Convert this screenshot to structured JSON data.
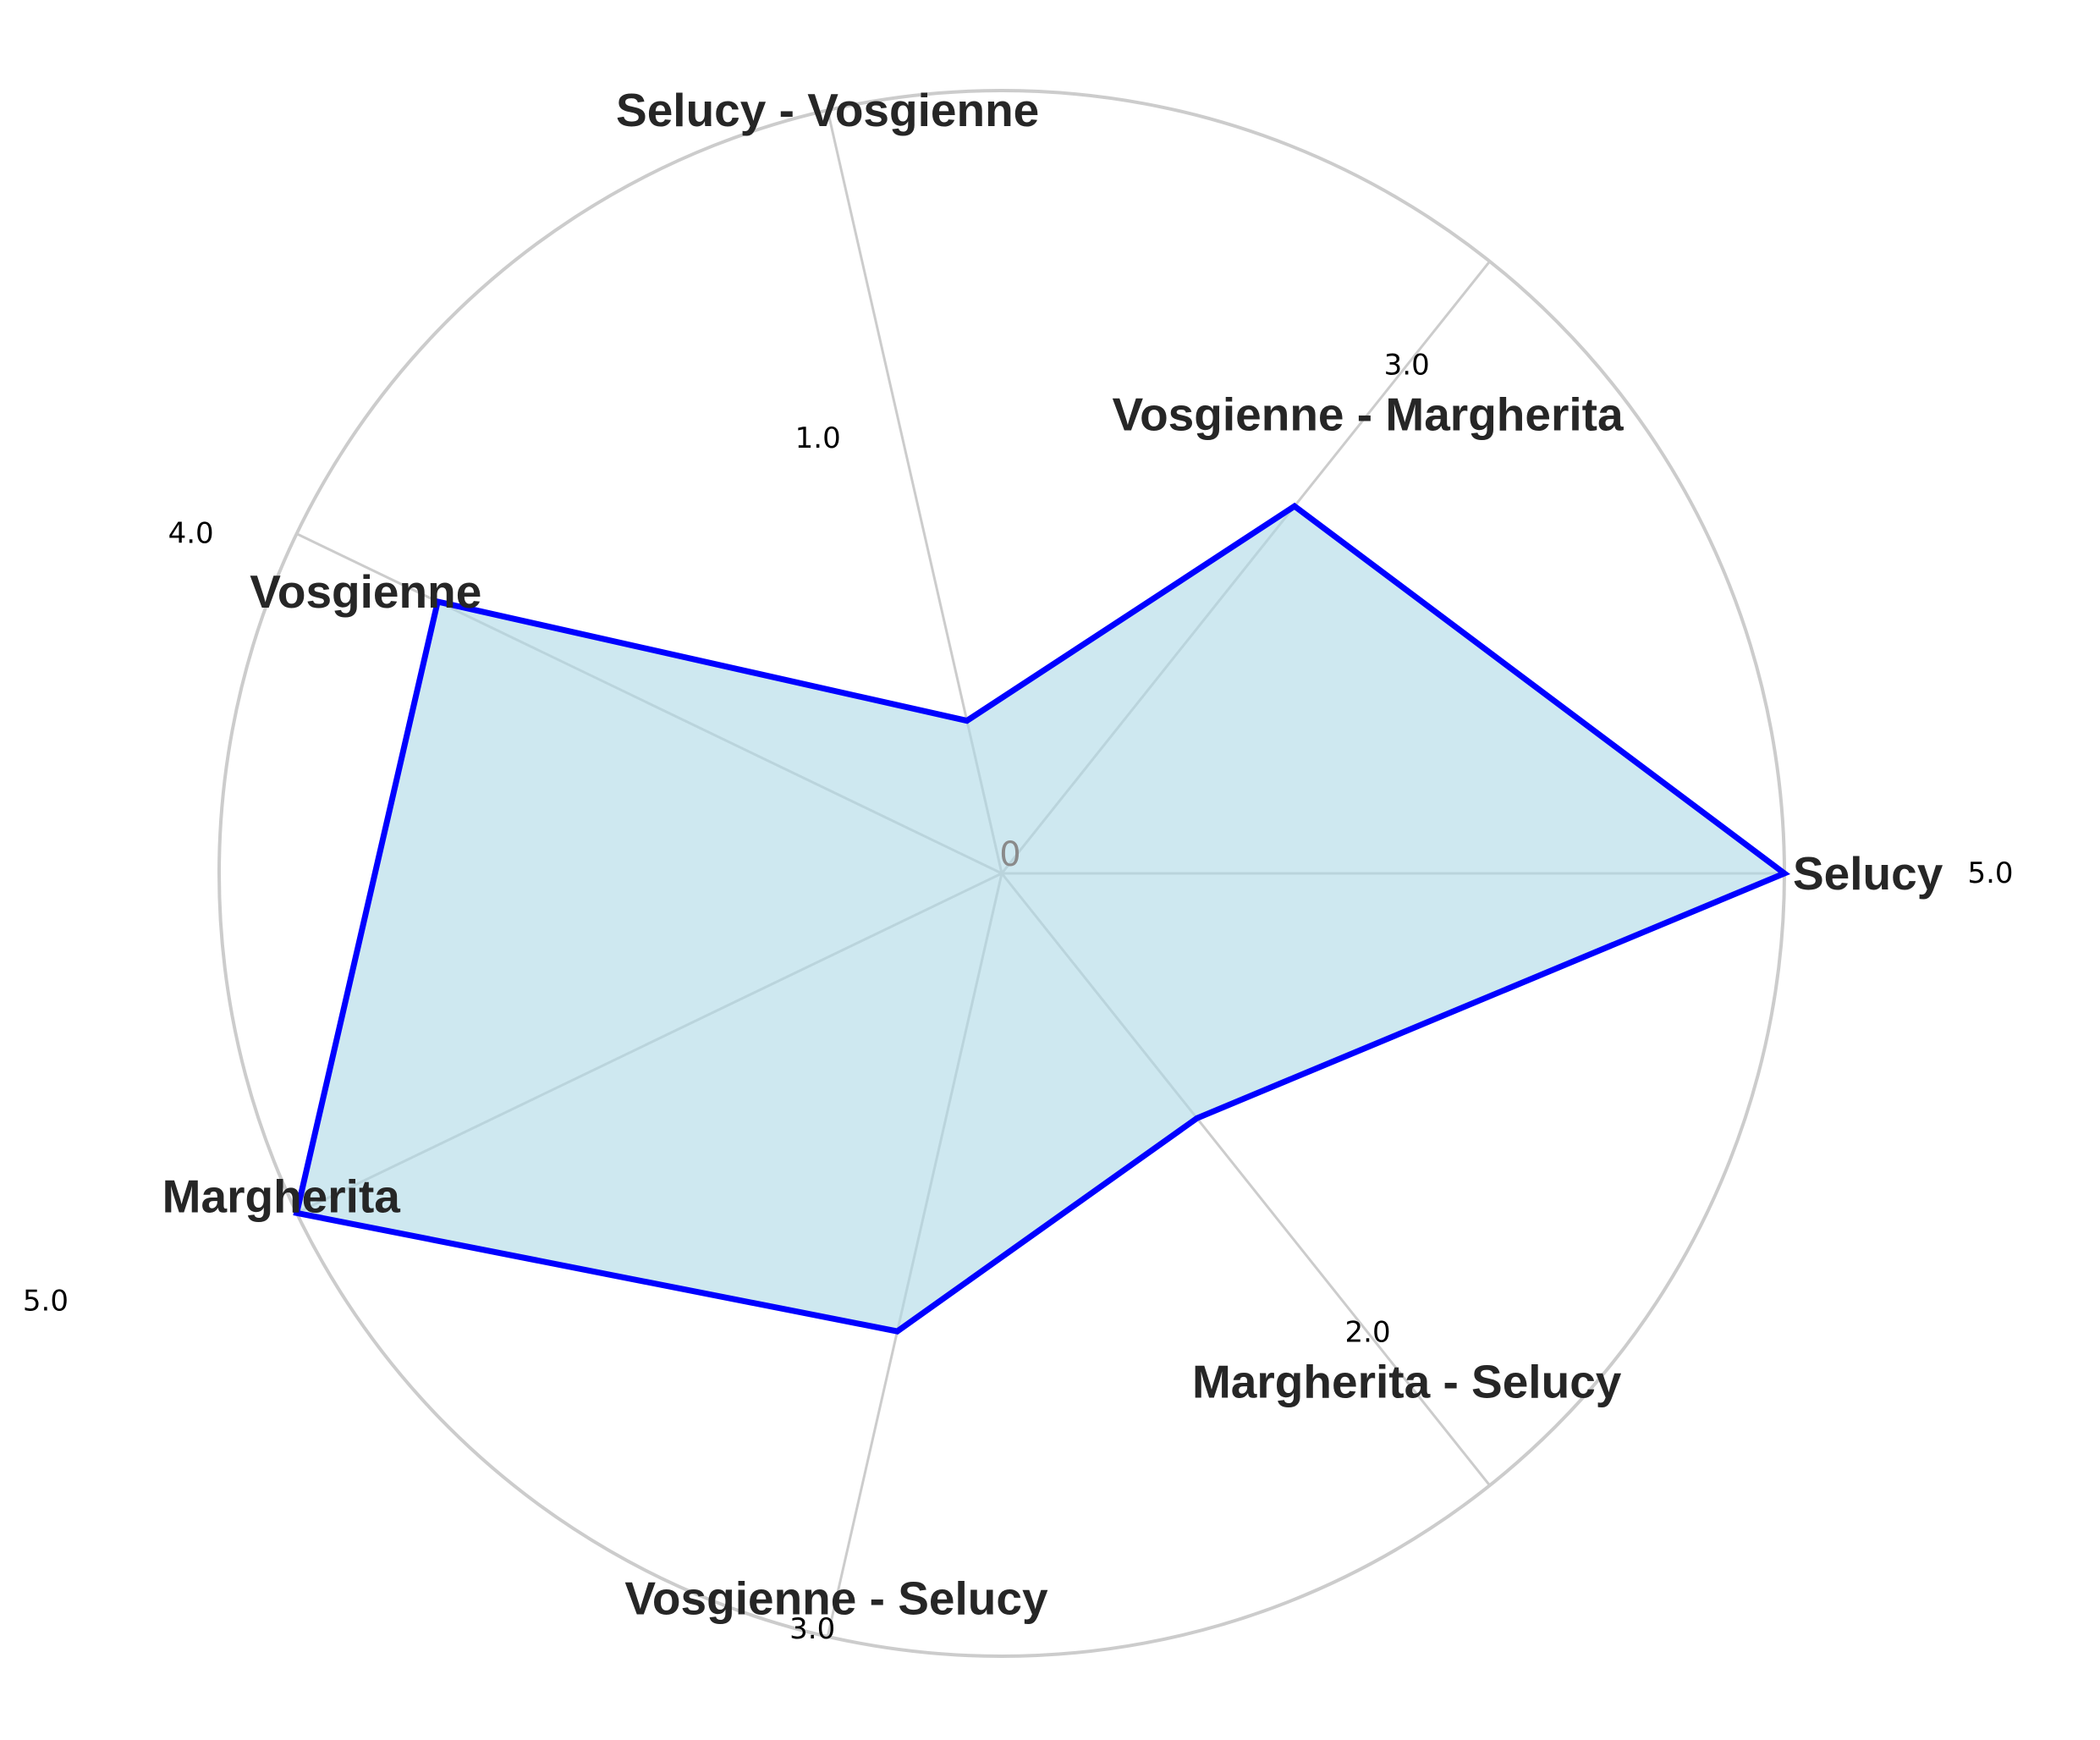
{
  "chart_data": {
    "type": "radar",
    "categories": [
      "Selucy",
      "Vosgienne - Margherita",
      "Selucy - Vosgienne",
      "Vosgienne",
      "Margherita",
      "Vosgienne - Selucy",
      "Margherita - Selucy"
    ],
    "values": [
      5.0,
      3.0,
      1.0,
      4.0,
      5.0,
      3.0,
      2.0
    ],
    "value_labels": [
      "5.0",
      "3.0",
      "1.0",
      "4.0",
      "5.0",
      "3.0",
      "2.0"
    ],
    "center_label": "0",
    "rmax": 5.0,
    "grid": true,
    "colors": {
      "line": "#0000ff",
      "fill": "#add8e6",
      "grid": "#cccccc",
      "label": "#262626",
      "center": "#8a8a8a"
    }
  }
}
